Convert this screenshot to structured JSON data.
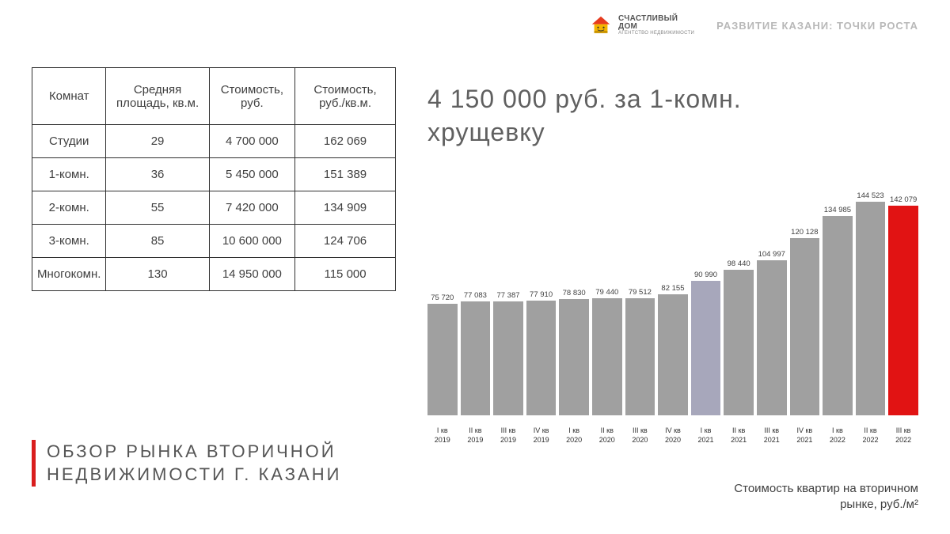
{
  "header": {
    "logo_brand_line1": "СЧАСТЛИВЫЙ",
    "logo_brand_line2": "ДОМ",
    "logo_sub": "АГЕНТСТВО НЕДВИЖИМОСТИ",
    "logo_colors": {
      "roof": "#e63b1f",
      "wall": "#f4b400",
      "shadow": "#c99400"
    },
    "title": "РАЗВИТИЕ КАЗАНИ: ТОЧКИ РОСТА"
  },
  "table": {
    "columns": [
      "Комнат",
      "Средняя площадь, кв.м.",
      "Стоимость, руб.",
      "Стоимость, руб./кв.м."
    ],
    "rows": [
      [
        "Студии",
        "29",
        "4 700 000",
        "162 069"
      ],
      [
        "1-комн.",
        "36",
        "5 450 000",
        "151 389"
      ],
      [
        "2-комн.",
        "55",
        "7 420 000",
        "134 909"
      ],
      [
        "3-комн.",
        "85",
        "10 600 000",
        "124 706"
      ],
      [
        "Многокомн.",
        "130",
        "14 950 000",
        "115 000"
      ]
    ],
    "border_color": "#303030",
    "font_size": 15
  },
  "big_stat": {
    "line1": "4 150 000 руб. за 1-комн.",
    "line2": "хрущевку",
    "font_size": 32,
    "color": "#606060"
  },
  "footer_title": {
    "line1": "ОБЗОР РЫНКА ВТОРИЧНОЙ",
    "line2": "НЕДВИЖИМОСТИ Г. КАЗАНИ",
    "accent_color": "#d91e1e",
    "font_size": 22,
    "color": "#555555"
  },
  "chart": {
    "type": "bar",
    "caption_line1": "Стоимость квартир на вторичном",
    "caption_line2": "рынке, руб./м²",
    "ylim_max": 150000,
    "chart_area_height": 300,
    "default_bar_color": "#a0a0a0",
    "label_font_size": 9,
    "value_font_size": 9.5,
    "bars": [
      {
        "q": "I кв",
        "y": "2019",
        "value": 75720,
        "label": "75 720",
        "color": "#a0a0a0"
      },
      {
        "q": "II кв",
        "y": "2019",
        "value": 77083,
        "label": "77 083",
        "color": "#a0a0a0"
      },
      {
        "q": "III кв",
        "y": "2019",
        "value": 77387,
        "label": "77 387",
        "color": "#a0a0a0"
      },
      {
        "q": "IV кв",
        "y": "2019",
        "value": 77910,
        "label": "77 910",
        "color": "#a0a0a0"
      },
      {
        "q": "I кв",
        "y": "2020",
        "value": 78830,
        "label": "78 830",
        "color": "#a0a0a0"
      },
      {
        "q": "II кв",
        "y": "2020",
        "value": 79440,
        "label": "79 440",
        "color": "#a0a0a0"
      },
      {
        "q": "III кв",
        "y": "2020",
        "value": 79512,
        "label": "79 512",
        "color": "#a0a0a0"
      },
      {
        "q": "IV кв",
        "y": "2020",
        "value": 82155,
        "label": "82 155",
        "color": "#a0a0a0"
      },
      {
        "q": "I кв",
        "y": "2021",
        "value": 90990,
        "label": "90 990",
        "color": "#a7a7bb"
      },
      {
        "q": "II кв",
        "y": "2021",
        "value": 98440,
        "label": "98 440",
        "color": "#a0a0a0"
      },
      {
        "q": "III кв",
        "y": "2021",
        "value": 104997,
        "label": "104 997",
        "color": "#a0a0a0"
      },
      {
        "q": "IV кв",
        "y": "2021",
        "value": 120128,
        "label": "120 128",
        "color": "#a0a0a0"
      },
      {
        "q": "I кв",
        "y": "2022",
        "value": 134985,
        "label": "134 985",
        "color": "#a0a0a0"
      },
      {
        "q": "II кв",
        "y": "2022",
        "value": 144523,
        "label": "144 523",
        "color": "#a0a0a0"
      },
      {
        "q": "III кв",
        "y": "2022",
        "value": 142079,
        "label": "142 079",
        "color": "#e11313"
      }
    ]
  }
}
